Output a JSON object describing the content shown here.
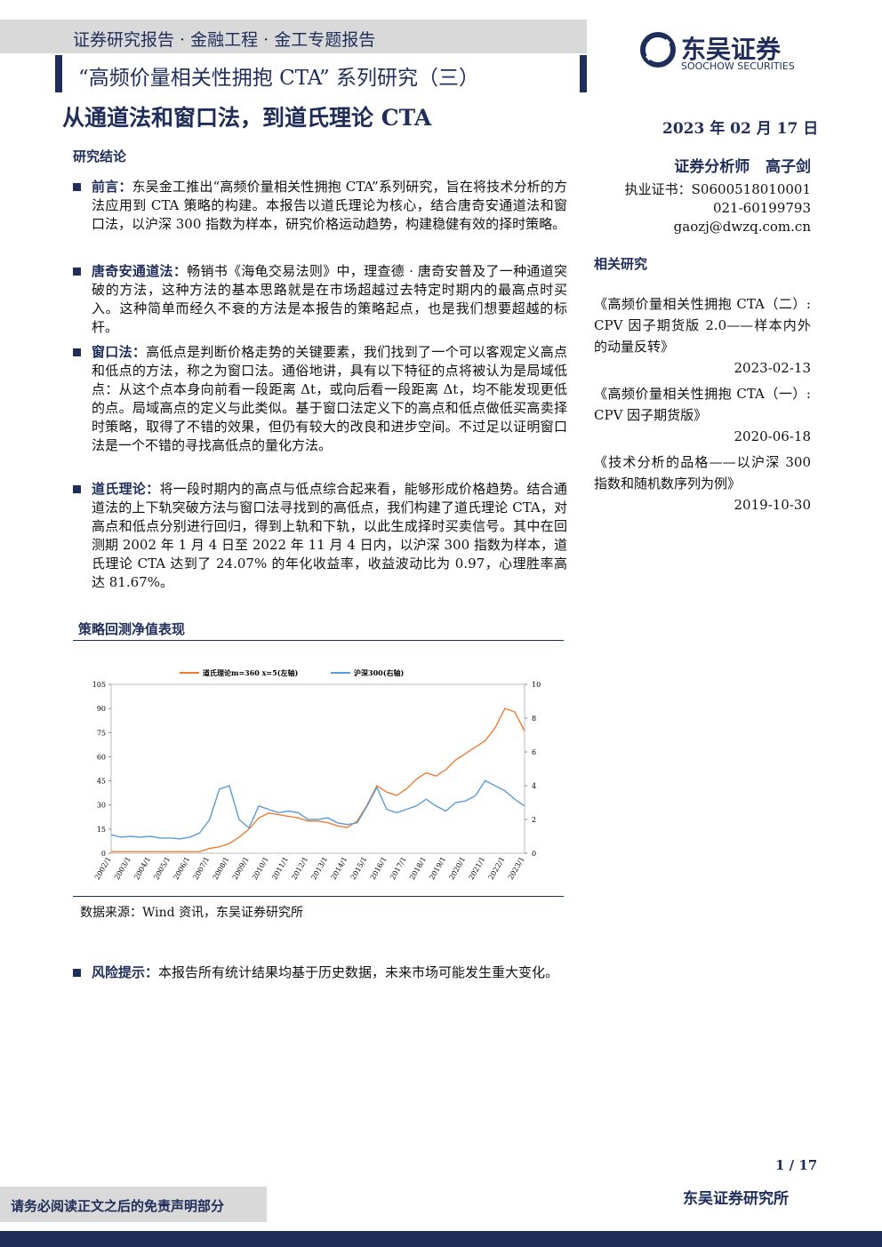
{
  "header": {
    "breadcrumb": "证券研究报告 · 金融工程 · 金工专题报告",
    "series_title": "“高频价量相关性拥抱 CTA” 系列研究（三）",
    "logo_cn": "东吴证券",
    "logo_en": "SOOCHOW SECURITIES",
    "title": "从通道法和窗口法，到道氏理论 CTA",
    "date": "2023 年 02 月 17 日"
  },
  "sidebar": {
    "analyst_label": "证券分析师",
    "analyst_name": "高子剑",
    "cert": "执业证书：S0600518010001",
    "phone": "021-60199793",
    "email": "gaozj@dwzq.com.cn",
    "related_heading": "相关研究",
    "related": [
      {
        "title": "《高频价量相关性拥抱 CTA（二）: CPV 因子期货版 2.0——样本内外的动量反转》",
        "date": "2023-02-13"
      },
      {
        "title": "《高频价量相关性拥抱 CTA（一）: CPV 因子期货版》",
        "date": "2020-06-18"
      },
      {
        "title": "《技术分析的品格——以沪深 300 指数和随机数序列为例》",
        "date": "2019-10-30"
      }
    ]
  },
  "conclusions": {
    "heading": "研究结论",
    "items": [
      {
        "label": "前言：",
        "text": "东吴金工推出“高频价量相关性拥抱 CTA”系列研究，旨在将技术分析的方法应用到 CTA 策略的构建。本报告以道氏理论为核心，结合唐奇安通道法和窗口法，以沪深 300 指数为样本，研究价格运动趋势，构建稳健有效的择时策略。"
      },
      {
        "label": "唐奇安通道法：",
        "text": "畅销书《海龟交易法则》中，理查德 · 唐奇安普及了一种通道突破的方法，这种方法的基本思路就是在市场超越过去特定时期内的最高点时买入。这种简单而经久不衰的方法是本报告的策略起点，也是我们想要超越的标杆。"
      },
      {
        "label": "窗口法：",
        "text": "高低点是判断价格走势的关键要素，我们找到了一个可以客观定义高点和低点的方法，称之为窗口法。通俗地讲，具有以下特征的点将被认为是局域低点：从这个点本身向前看一段距离 Δt，或向后看一段距离 Δt，均不能发现更低的点。局域高点的定义与此类似。基于窗口法定义下的高点和低点做低买高卖择时策略，取得了不错的效果，但仍有较大的改良和进步空间。不过足以证明窗口法是一个不错的寻找高低点的量化方法。"
      },
      {
        "label": "道氏理论：",
        "text": "将一段时期内的高点与低点综合起来看，能够形成价格趋势。结合通道法的上下轨突破方法与窗口法寻找到的高低点，我们构建了道氏理论 CTA，对高点和低点分别进行回归，得到上轨和下轨，以此生成择时买卖信号。其中在回测期 2002 年 1 月 4 日至 2022 年 11 月 4 日内，以沪深 300 指数为样本，道氏理论 CTA 达到了 24.07% 的年化收益率，收益波动比为 0.97，心理胜率高达 81.67%。"
      }
    ]
  },
  "chart_section": {
    "heading": "策略回测净值表现",
    "chart": {
      "type": "line",
      "categories": [
        "2002/1",
        null,
        "2003/1",
        null,
        "2004/1",
        null,
        "2005/1",
        null,
        "2006/1",
        null,
        "2007/1",
        null,
        "2008/1",
        null,
        "2009/1",
        null,
        "2010/1",
        null,
        "2011/1",
        null,
        "2012/1",
        null,
        "2013/1",
        null,
        "2014/1",
        null,
        "2015/1",
        null,
        "2016/1",
        null,
        "2017/1",
        null,
        "2018/1",
        null,
        "2019/1",
        null,
        "2020/1",
        null,
        "2021/1",
        null,
        "2022/1",
        null,
        "2023/1"
      ],
      "series": [
        {
          "name": "道氏理论m=360 x=5(左轴)",
          "color": "#ed7d31",
          "values": [
            1,
            1,
            1,
            1,
            1,
            1,
            1,
            1,
            1,
            1,
            3,
            4,
            6,
            10,
            15,
            22,
            25,
            24,
            23,
            22,
            20,
            20,
            19,
            17,
            16,
            20,
            30,
            42,
            38,
            36,
            40,
            46,
            50,
            48,
            52,
            58,
            62,
            66,
            70,
            78,
            90,
            88,
            76
          ]
        },
        {
          "name": "沪深300(右轴)",
          "color": "#5b9bd5",
          "axis": "y2",
          "values": [
            1.1,
            0.95,
            1.0,
            0.95,
            1.0,
            0.9,
            0.9,
            0.85,
            0.95,
            1.2,
            2.0,
            3.8,
            4.0,
            2.0,
            1.5,
            2.8,
            2.6,
            2.4,
            2.5,
            2.4,
            2.0,
            2.0,
            2.1,
            1.8,
            1.7,
            1.8,
            2.8,
            3.9,
            2.6,
            2.4,
            2.6,
            2.8,
            3.2,
            2.8,
            2.5,
            3.0,
            3.1,
            3.4,
            4.3,
            4.0,
            3.7,
            3.2,
            2.8
          ]
        }
      ],
      "ylim": [
        0,
        105
      ],
      "yticks": [
        0,
        15,
        30,
        45,
        60,
        75,
        90,
        105
      ],
      "y2lim": [
        0,
        10
      ],
      "y2ticks": [
        0,
        2,
        4,
        6,
        8,
        10
      ]
    },
    "source": "数据来源：Wind 资讯，东吴证券研究所"
  },
  "risk": {
    "label": "风险提示：",
    "text": "本报告所有统计结果均基于历史数据，未来市场可能发生重大变化。"
  },
  "footer": {
    "page": "1 / 17",
    "disclaimer": "请务必阅读正文之后的免责声明部分",
    "institute": "东吴证券研究所"
  }
}
